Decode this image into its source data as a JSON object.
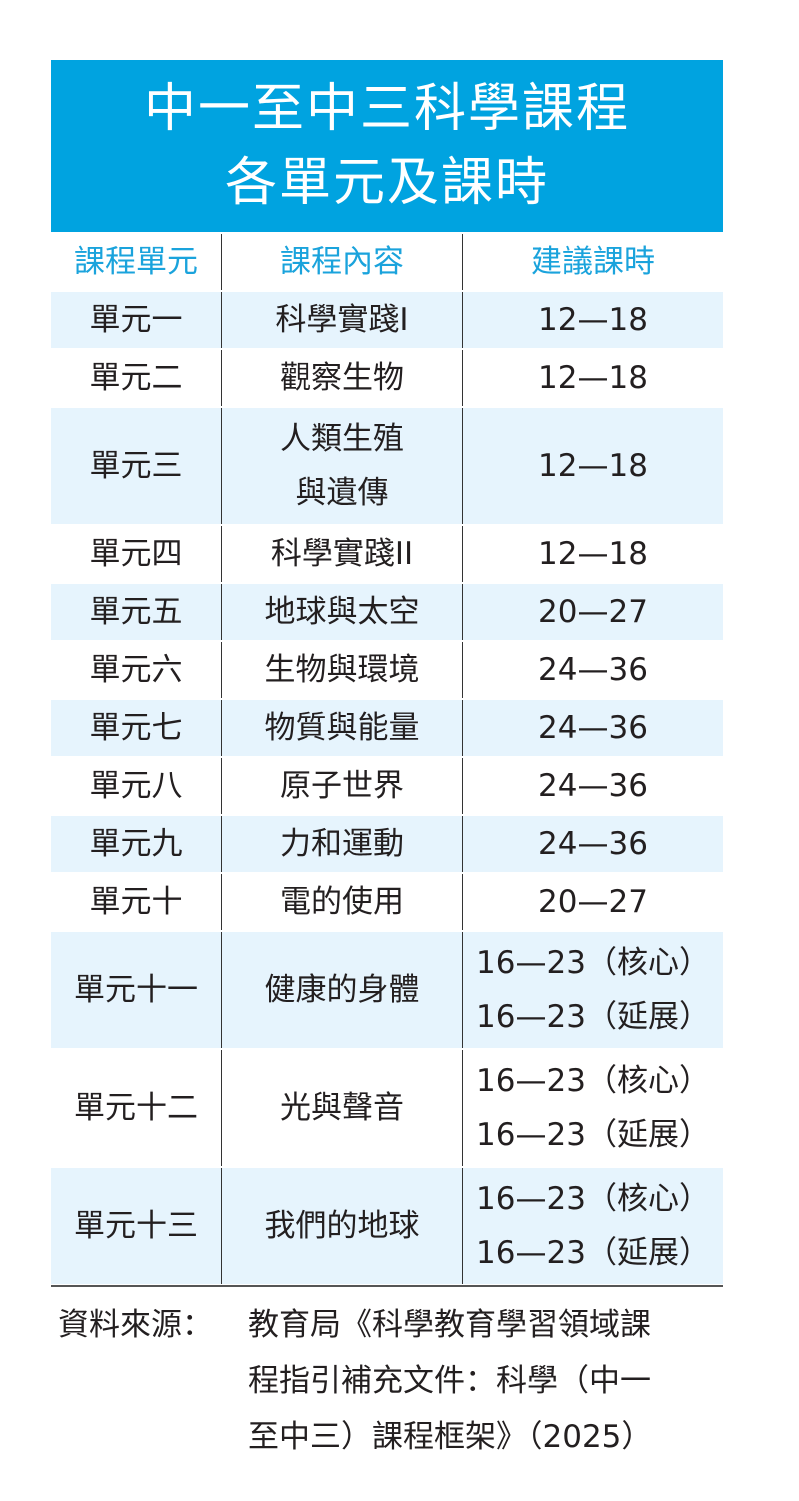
{
  "title": {
    "line1": "中一至中三科學課程",
    "line2": "各單元及課時"
  },
  "columns": [
    "課程單元",
    "課程內容",
    "建議課時"
  ],
  "rows": [
    {
      "unit": "單元一",
      "content": [
        "科學實踐I"
      ],
      "hours": [
        "12—18"
      ]
    },
    {
      "unit": "單元二",
      "content": [
        "觀察生物"
      ],
      "hours": [
        "12—18"
      ]
    },
    {
      "unit": "單元三",
      "content": [
        "人類生殖",
        "與遺傳"
      ],
      "hours": [
        "12—18"
      ]
    },
    {
      "unit": "單元四",
      "content": [
        "科學實踐II"
      ],
      "hours": [
        "12—18"
      ]
    },
    {
      "unit": "單元五",
      "content": [
        "地球與太空"
      ],
      "hours": [
        "20—27"
      ]
    },
    {
      "unit": "單元六",
      "content": [
        "生物與環境"
      ],
      "hours": [
        "24—36"
      ]
    },
    {
      "unit": "單元七",
      "content": [
        "物質與能量"
      ],
      "hours": [
        "24—36"
      ]
    },
    {
      "unit": "單元八",
      "content": [
        "原子世界"
      ],
      "hours": [
        "24—36"
      ]
    },
    {
      "unit": "單元九",
      "content": [
        "力和運動"
      ],
      "hours": [
        "24—36"
      ]
    },
    {
      "unit": "單元十",
      "content": [
        "電的使用"
      ],
      "hours": [
        "20—27"
      ]
    },
    {
      "unit": "單元十一",
      "content": [
        "健康的身體"
      ],
      "hours": [
        "16—23（核心）",
        "16—23（延展）"
      ]
    },
    {
      "unit": "單元十二",
      "content": [
        "光與聲音"
      ],
      "hours": [
        "16—23（核心）",
        "16—23（延展）"
      ]
    },
    {
      "unit": "單元十三",
      "content": [
        "我們的地球"
      ],
      "hours": [
        "16—23（核心）",
        "16—23（延展）"
      ]
    }
  ],
  "source": {
    "label": "資料來源：",
    "lines": [
      "教育局《科學教育學習領域課",
      "程指引補充文件：科學（中一",
      "至中三）課程框架》（2025）"
    ]
  },
  "colors": {
    "header_bg": "#00a3e0",
    "header_text": "#1aa3dc",
    "row_shade": "#e6f4fd",
    "text": "#231f20"
  }
}
